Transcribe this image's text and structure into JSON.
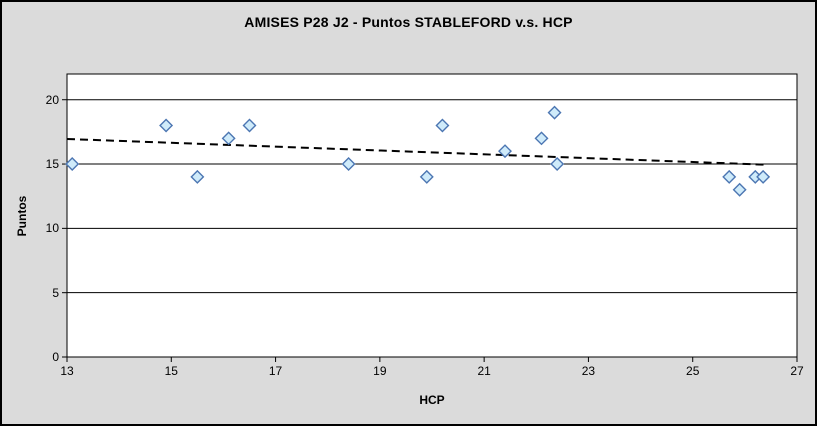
{
  "chart_data": {
    "type": "scatter",
    "title": "AMISES P28 J2 - Puntos STABLEFORD v.s. HCP",
    "xlabel": "HCP",
    "ylabel": "Puntos",
    "xlim": [
      13,
      27
    ],
    "ylim": [
      0,
      22
    ],
    "x_ticks": [
      13,
      15,
      17,
      19,
      21,
      23,
      25,
      27
    ],
    "y_ticks": [
      0,
      5,
      10,
      15,
      20
    ],
    "grid": "horizontal-major",
    "legend": "none",
    "series": [
      {
        "name": "Puntos STABLEFORD vs HCP",
        "marker": "diamond",
        "points": [
          [
            13.1,
            15
          ],
          [
            14.9,
            18
          ],
          [
            15.5,
            14
          ],
          [
            16.1,
            17
          ],
          [
            16.5,
            18
          ],
          [
            18.4,
            15
          ],
          [
            19.9,
            14
          ],
          [
            20.2,
            18
          ],
          [
            21.4,
            16
          ],
          [
            22.1,
            17
          ],
          [
            22.35,
            19
          ],
          [
            22.4,
            15
          ],
          [
            25.7,
            14
          ],
          [
            25.9,
            13
          ],
          [
            26.2,
            14
          ],
          [
            26.35,
            14
          ]
        ]
      }
    ],
    "trendline": {
      "style": "dashed",
      "x1": 13,
      "y1": 16.95,
      "x2": 26.4,
      "y2": 14.95
    },
    "colors": {
      "background": "#DBDBDB",
      "plot_background": "#FFFFFF",
      "axis_line": "#000000",
      "gridline": "#000000",
      "marker_fill": "#CFEBFA",
      "marker_border": "#4C76B2",
      "trendline": "#000000",
      "text": "#000000"
    }
  }
}
